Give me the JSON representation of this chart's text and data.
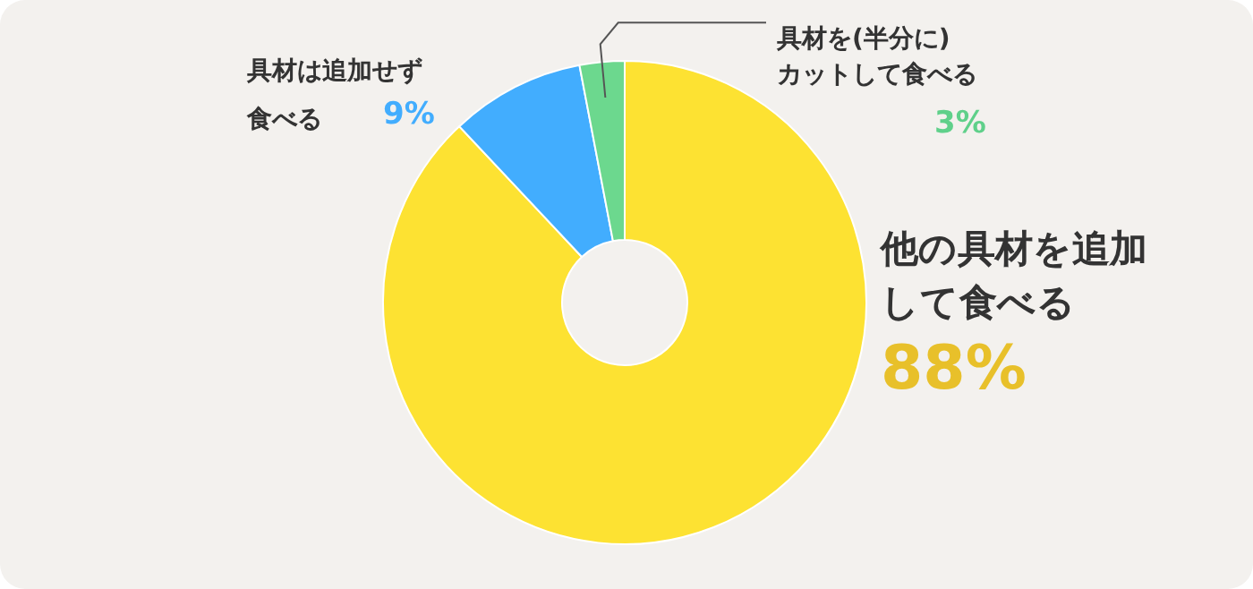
{
  "chart_data": {
    "type": "donut",
    "categories": [
      "他の具材を追加して食べる",
      "具材は追加せず食べる",
      "具材を(半分に)カットして食べる"
    ],
    "values": [
      88,
      9,
      3
    ],
    "colors": [
      "#fde232",
      "#42adfe",
      "#6cd88e"
    ],
    "value_labels": [
      "88%",
      "9%",
      "3%"
    ]
  }
}
